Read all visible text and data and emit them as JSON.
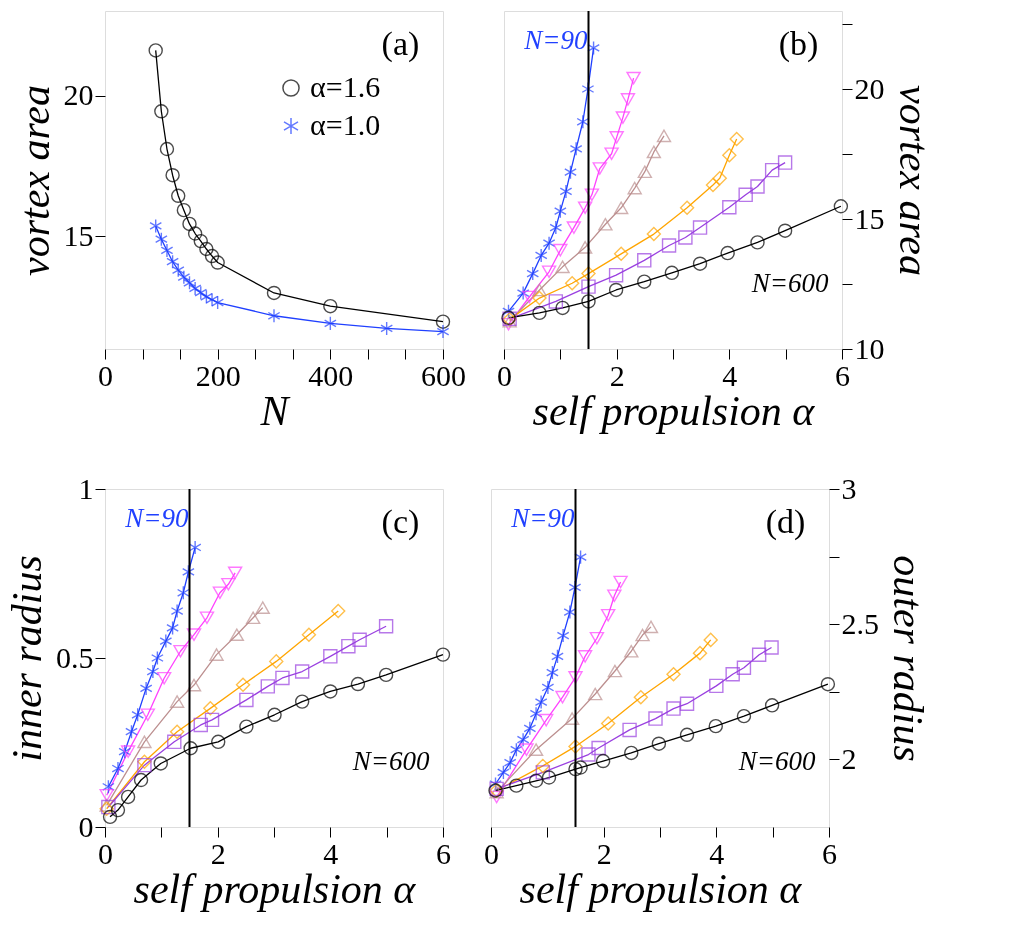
{
  "chart_data": [
    {
      "type": "line",
      "xlabel": "N",
      "ylabel": "vortex area",
      "xlim": [
        0,
        600
      ],
      "ylim": [
        11,
        23
      ],
      "xticks": [
        0,
        {
          "value": 66.67,
          "label": null
        },
        {
          "value": 133.33,
          "label": null
        },
        200,
        {
          "value": 266.67,
          "label": null
        },
        {
          "value": 333.33,
          "label": null
        },
        400,
        {
          "value": 466.67,
          "label": null
        },
        {
          "value": 533.33,
          "label": null
        },
        600
      ],
      "yticks": [
        15,
        20
      ],
      "legend": "top right",
      "annotations": [
        "(a)"
      ],
      "series": [
        {
          "name": "α=1.6",
          "color": "#000000",
          "marker": "circle",
          "x": [
            90,
            100,
            110,
            120,
            130,
            140,
            150,
            160,
            170,
            180,
            190,
            200,
            300,
            400,
            600
          ],
          "values": [
            21.6,
            19.44,
            18.1,
            17.17,
            16.44,
            15.93,
            15.44,
            15.1,
            14.83,
            14.55,
            14.3,
            14.07,
            12.99,
            12.52,
            11.97
          ]
        },
        {
          "name": "α=1.0",
          "color": "#2040ff",
          "marker": "cross",
          "x": [
            90,
            100,
            110,
            120,
            130,
            140,
            150,
            160,
            170,
            180,
            190,
            200,
            300,
            400,
            500,
            600
          ],
          "values": [
            15.37,
            14.9,
            14.5,
            14.1,
            13.8,
            13.55,
            13.35,
            13.15,
            13.0,
            12.85,
            12.75,
            12.65,
            12.18,
            11.91,
            11.73,
            11.62
          ]
        }
      ]
    },
    {
      "type": "line",
      "xlabel": "self propulsion α",
      "y2label": "vortex area",
      "xlim": [
        0,
        6
      ],
      "y2lim": [
        10,
        23
      ],
      "xticks": [
        0,
        {
          "value": 1,
          "label": null
        },
        2,
        {
          "value": 3,
          "label": null
        },
        4,
        {
          "value": 5,
          "label": null
        },
        6
      ],
      "y2ticks": [
        10,
        {
          "value": 12.5,
          "label": null
        },
        15,
        {
          "value": 17.5,
          "label": null
        },
        20,
        {
          "value": 22.5,
          "label": null
        }
      ],
      "ref_lines": [
        {
          "axis": "x",
          "value": 1.5,
          "color": "#000000"
        }
      ],
      "annotations": [
        "(b)",
        "N=90",
        "N=600"
      ],
      "series": [
        {
          "axis": "y2",
          "color": "#2040ff",
          "marker": "cross",
          "x": [
            0.08,
            0.34,
            0.51,
            0.66,
            0.8,
            0.92,
            1.0,
            1.1,
            1.18,
            1.28,
            1.4,
            1.49,
            1.59
          ],
          "values": [
            11.45,
            12.15,
            12.9,
            13.6,
            14.07,
            14.67,
            15.3,
            16.06,
            16.8,
            17.7,
            18.74,
            20.0,
            21.58
          ]
        },
        {
          "axis": "y2",
          "color": "#ff40ff",
          "marker": "triangle-down",
          "x": [
            0.08,
            0.45,
            0.8,
            1.0,
            1.24,
            1.44,
            1.56,
            1.7,
            1.91,
            2.0,
            2.11,
            2.2,
            2.3
          ],
          "values": [
            10.95,
            12.0,
            12.97,
            13.8,
            14.67,
            15.43,
            15.93,
            16.94,
            17.51,
            18.14,
            18.9,
            19.6,
            20.42
          ]
        },
        {
          "axis": "y2",
          "color": "#bc8f8f",
          "marker": "triangle",
          "x": [
            0.1,
            0.63,
            1.04,
            1.44,
            1.8,
            2.08,
            2.32,
            2.5,
            2.66,
            2.84
          ],
          "values": [
            11.07,
            12.27,
            13.16,
            13.91,
            14.8,
            15.43,
            16.19,
            16.82,
            17.58,
            18.2
          ]
        },
        {
          "axis": "y2",
          "color": "#ffa500",
          "marker": "diamond",
          "x": [
            0.1,
            0.63,
            1.21,
            1.5,
            2.08,
            2.66,
            3.25,
            3.71,
            3.83,
            4.0,
            4.13
          ],
          "values": [
            11.14,
            11.96,
            12.53,
            12.9,
            13.66,
            14.42,
            15.43,
            16.31,
            16.57,
            17.45,
            18.08
          ]
        },
        {
          "axis": "y2",
          "color": "#9a40e0",
          "marker": "square",
          "x": [
            0.1,
            0.92,
            1.5,
            1.99,
            2.49,
            2.93,
            3.22,
            3.48,
            4.0,
            4.29,
            4.5,
            4.76,
            4.99
          ],
          "values": [
            11.16,
            11.83,
            12.4,
            12.84,
            13.41,
            13.98,
            14.29,
            14.67,
            15.45,
            15.93,
            16.25,
            16.88,
            17.17
          ]
        },
        {
          "axis": "y2",
          "color": "#000000",
          "marker": "circle",
          "x": [
            0.08,
            0.63,
            1.04,
            1.5,
            1.99,
            2.49,
            2.98,
            3.48,
            3.97,
            4.5,
            4.99,
            5.98
          ],
          "values": [
            11.2,
            11.39,
            11.58,
            11.83,
            12.27,
            12.59,
            12.93,
            13.28,
            13.69,
            14.1,
            14.55,
            15.49
          ]
        }
      ]
    },
    {
      "type": "line",
      "xlabel": "self propulsion α",
      "ylabel": "inner radius",
      "xlim": [
        0,
        6
      ],
      "ylim": [
        0,
        1
      ],
      "xticks": [
        0,
        {
          "value": 1,
          "label": null
        },
        2,
        {
          "value": 3,
          "label": null
        },
        4,
        {
          "value": 5,
          "label": null
        },
        6
      ],
      "yticks": [
        0,
        0.5,
        1
      ],
      "ref_lines": [
        {
          "axis": "x",
          "value": 1.5,
          "color": "#000000"
        }
      ],
      "annotations": [
        "(c)",
        "N=90",
        "N=600"
      ],
      "series": [
        {
          "color": "#2040ff",
          "marker": "cross",
          "x": [
            0.06,
            0.23,
            0.35,
            0.47,
            0.58,
            0.73,
            0.85,
            0.93,
            1.08,
            1.2,
            1.28,
            1.39,
            1.48,
            1.6
          ],
          "values": [
            0.119,
            0.173,
            0.223,
            0.282,
            0.332,
            0.41,
            0.46,
            0.5,
            0.55,
            0.589,
            0.639,
            0.693,
            0.755,
            0.827
          ]
        },
        {
          "color": "#ff40ff",
          "marker": "triangle-down",
          "x": [
            0.03,
            0.41,
            0.76,
            1.05,
            1.34,
            1.58,
            1.81,
            2.04,
            2.19,
            2.31
          ],
          "values": [
            0.094,
            0.223,
            0.332,
            0.44,
            0.52,
            0.569,
            0.619,
            0.693,
            0.718,
            0.752
          ]
        },
        {
          "color": "#bc8f8f",
          "marker": "triangle",
          "x": [
            0.03,
            0.7,
            1.28,
            1.58,
            1.98,
            2.34,
            2.63,
            2.8
          ],
          "values": [
            0.064,
            0.252,
            0.371,
            0.42,
            0.51,
            0.569,
            0.619,
            0.649
          ]
        },
        {
          "color": "#ffa500",
          "marker": "diamond",
          "x": [
            0.03,
            0.7,
            1.28,
            1.87,
            2.45,
            3.04,
            3.62,
            4.14
          ],
          "values": [
            0.054,
            0.193,
            0.282,
            0.351,
            0.421,
            0.49,
            0.569,
            0.639
          ]
        },
        {
          "color": "#9a40e0",
          "marker": "square",
          "x": [
            0.06,
            0.7,
            1.23,
            1.7,
            1.9,
            2.51,
            2.89,
            3.15,
            3.5,
            4.0,
            4.32,
            4.52,
            4.99
          ],
          "values": [
            0.059,
            0.183,
            0.252,
            0.302,
            0.317,
            0.376,
            0.416,
            0.441,
            0.46,
            0.505,
            0.535,
            0.554,
            0.594
          ]
        },
        {
          "color": "#000000",
          "marker": "circle",
          "x": [
            0.09,
            0.23,
            0.41,
            0.64,
            0.99,
            1.52,
            2.01,
            2.51,
            3.01,
            3.5,
            4.0,
            4.49,
            4.99,
            6.0
          ],
          "values": [
            0.03,
            0.05,
            0.089,
            0.139,
            0.188,
            0.233,
            0.252,
            0.297,
            0.332,
            0.371,
            0.401,
            0.423,
            0.45,
            0.51
          ]
        }
      ]
    },
    {
      "type": "line",
      "xlabel": "self propulsion α",
      "y2label": "outer radius",
      "xlim": [
        0,
        6
      ],
      "y2lim": [
        1.75,
        3
      ],
      "xticks": [
        0,
        {
          "value": 1,
          "label": null
        },
        2,
        {
          "value": 3,
          "label": null
        },
        4,
        {
          "value": 5,
          "label": null
        },
        6
      ],
      "y2ticks": [
        2,
        {
          "value": 2.25,
          "label": null
        },
        2.5,
        {
          "value": 2.75,
          "label": null
        },
        3
      ],
      "ref_lines": [
        {
          "axis": "x",
          "value": 1.5,
          "color": "#000000"
        }
      ],
      "annotations": [
        "(d)",
        "N=90",
        "N=600"
      ],
      "series": [
        {
          "axis": "y2",
          "color": "#2040ff",
          "marker": "cross",
          "x": [
            0.08,
            0.22,
            0.34,
            0.45,
            0.57,
            0.69,
            0.8,
            0.89,
            1.01,
            1.09,
            1.18,
            1.28,
            1.4,
            1.49,
            1.59
          ],
          "values": [
            1.909,
            1.952,
            1.988,
            2.036,
            2.073,
            2.115,
            2.169,
            2.212,
            2.266,
            2.321,
            2.381,
            2.458,
            2.545,
            2.636,
            2.748
          ]
        },
        {
          "axis": "y2",
          "color": "#ff40ff",
          "marker": "triangle-down",
          "x": [
            0.1,
            0.63,
            0.98,
            1.27,
            1.5,
            1.67,
            1.88,
            2.08,
            2.19,
            2.3
          ],
          "values": [
            1.861,
            2.036,
            2.145,
            2.23,
            2.303,
            2.381,
            2.448,
            2.533,
            2.605,
            2.656
          ]
        },
        {
          "axis": "y2",
          "color": "#bc8f8f",
          "marker": "triangle",
          "x": [
            0.1,
            0.8,
            1.44,
            1.85,
            2.2,
            2.49,
            2.69,
            2.84
          ],
          "values": [
            1.879,
            2.036,
            2.151,
            2.242,
            2.327,
            2.4,
            2.46,
            2.49
          ]
        },
        {
          "axis": "y2",
          "color": "#ffa500",
          "marker": "diamond",
          "x": [
            0.1,
            0.92,
            1.5,
            2.08,
            2.66,
            3.24,
            3.71,
            3.9
          ],
          "values": [
            1.885,
            1.976,
            2.048,
            2.133,
            2.23,
            2.315,
            2.393,
            2.442
          ]
        },
        {
          "axis": "y2",
          "color": "#9a40e0",
          "marker": "square",
          "x": [
            0.1,
            0.92,
            1.73,
            1.91,
            2.46,
            2.92,
            3.24,
            3.48,
            4.0,
            4.29,
            4.49,
            4.76,
            4.98
          ],
          "values": [
            1.891,
            1.952,
            2.018,
            2.042,
            2.109,
            2.151,
            2.188,
            2.206,
            2.272,
            2.315,
            2.339,
            2.387,
            2.414
          ]
        },
        {
          "axis": "y2",
          "color": "#000000",
          "marker": "circle",
          "x": [
            0.08,
            0.45,
            0.8,
            1.03,
            1.5,
            1.59,
            1.99,
            2.49,
            2.98,
            3.48,
            3.99,
            4.49,
            4.99,
            5.98
          ],
          "values": [
            1.885,
            1.903,
            1.921,
            1.933,
            1.964,
            1.97,
            1.994,
            2.024,
            2.058,
            2.091,
            2.123,
            2.16,
            2.2,
            2.278
          ]
        }
      ]
    }
  ]
}
